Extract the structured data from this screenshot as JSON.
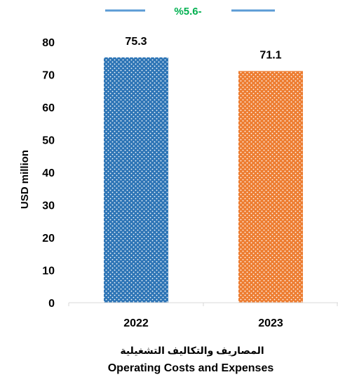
{
  "chart_data": {
    "type": "bar",
    "categories": [
      "2022",
      "2023"
    ],
    "values": [
      75.3,
      71.1
    ],
    "value_labels": [
      "75.3",
      "71.1"
    ],
    "bar_colors": [
      "#2e75b6",
      "#ed7d31"
    ],
    "bar_pattern": "white-dots",
    "ylabel": "USD million",
    "ylim": [
      0,
      80
    ],
    "y_ticks": [
      0,
      10,
      20,
      30,
      40,
      50,
      60,
      70,
      80
    ],
    "xlabel_arabic": "المصاريف والتكاليف التشغيلية",
    "xlabel": "Operating Costs and Expenses",
    "grid": false,
    "legend": {
      "label": "%5.6-",
      "color": "#00b050",
      "line_color": "#5b9bd5",
      "placement": "top-center"
    }
  }
}
